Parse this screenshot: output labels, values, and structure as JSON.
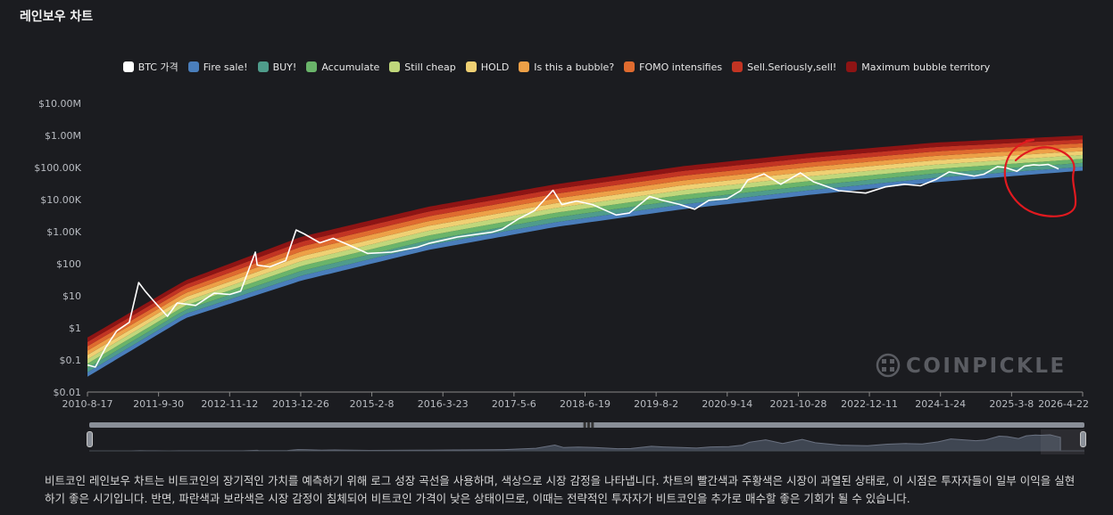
{
  "page": {
    "title": "레인보우 차트",
    "description": "비트코인 레인보우 차트는 비트코인의 장기적인 가치를 예측하기 위해 로그 성장 곡선을 사용하며, 색상으로 시장 감정을 나타냅니다. 차트의 빨간색과 주황색은 시장이 과열된 상태로, 이 시점은 투자자들이 일부 이익을 실현하기 좋은 시기입니다. 반면, 파란색과 보라색은 시장 감정이 침체되어 비트코인 가격이 낮은 상태이므로, 이때는 전략적인 투자자가 비트코인을 추가로 매수할 좋은 기회가 될 수 있습니다.",
    "watermark": "COINPICKLE"
  },
  "chart_data": {
    "type": "area",
    "y_scale": "log",
    "ylim": [
      0.01,
      10000000
    ],
    "xlim": [
      "2010-08-17",
      "2026-04-22"
    ],
    "y_ticks": [
      {
        "value": 10000000,
        "label": "$10.00M"
      },
      {
        "value": 1000000,
        "label": "$1.00M"
      },
      {
        "value": 100000,
        "label": "$100.00K"
      },
      {
        "value": 10000,
        "label": "$10.00K"
      },
      {
        "value": 1000,
        "label": "$1.00K"
      },
      {
        "value": 100,
        "label": "$100"
      },
      {
        "value": 10,
        "label": "$10"
      },
      {
        "value": 1,
        "label": "$1"
      },
      {
        "value": 0.1,
        "label": "$0.1"
      },
      {
        "value": 0.01,
        "label": "$0.01"
      }
    ],
    "x_ticks": [
      "2010-8-17",
      "2011-9-30",
      "2012-11-12",
      "2013-12-26",
      "2015-2-8",
      "2016-3-23",
      "2017-5-6",
      "2018-6-19",
      "2019-8-2",
      "2020-9-14",
      "2021-10-28",
      "2022-12-11",
      "2024-1-24",
      "2025-3-8",
      "2026-4-22"
    ],
    "legend_position": "top",
    "grid": false,
    "series": [
      {
        "name": "BTC 가격",
        "color": "#ffffff"
      },
      {
        "name": "Fire sale!",
        "color": "#4a7ebb"
      },
      {
        "name": "BUY!",
        "color": "#4f9c8b"
      },
      {
        "name": "Accumulate",
        "color": "#6ab46a"
      },
      {
        "name": "Still cheap",
        "color": "#c0d77b"
      },
      {
        "name": "HOLD",
        "color": "#efd073"
      },
      {
        "name": "Is this a bubble?",
        "color": "#eda047"
      },
      {
        "name": "FOMO intensifies",
        "color": "#df6b2f"
      },
      {
        "name": "Sell.Seriously,sell!",
        "color": "#c23423"
      },
      {
        "name": "Maximum bubble territory",
        "color": "#8e1414"
      }
    ],
    "bands_lower_bound": [
      [
        "2010-08-17",
        0.03
      ],
      [
        "2012-03-01",
        2
      ],
      [
        "2014-01-01",
        30
      ],
      [
        "2016-01-01",
        270
      ],
      [
        "2018-01-01",
        1400
      ],
      [
        "2020-01-01",
        5000
      ],
      [
        "2022-01-01",
        14000
      ],
      [
        "2024-01-01",
        35000
      ],
      [
        "2026-04-22",
        80000
      ]
    ],
    "bands_upper_bound": [
      [
        "2010-08-17",
        0.5
      ],
      [
        "2012-03-01",
        30
      ],
      [
        "2014-01-01",
        700
      ],
      [
        "2016-01-01",
        6000
      ],
      [
        "2018-01-01",
        30000
      ],
      [
        "2020-01-01",
        110000
      ],
      [
        "2022-01-01",
        280000
      ],
      [
        "2024-01-01",
        600000
      ],
      [
        "2026-04-22",
        1000000
      ]
    ],
    "btc_price": [
      [
        "2010-08-17",
        0.07
      ],
      [
        "2010-10-01",
        0.06
      ],
      [
        "2010-12-01",
        0.25
      ],
      [
        "2011-02-01",
        0.8
      ],
      [
        "2011-04-15",
        1.5
      ],
      [
        "2011-06-08",
        26
      ],
      [
        "2011-07-15",
        14
      ],
      [
        "2011-09-01",
        7
      ],
      [
        "2011-11-20",
        2.3
      ],
      [
        "2012-01-15",
        6
      ],
      [
        "2012-05-01",
        5
      ],
      [
        "2012-08-15",
        12
      ],
      [
        "2012-11-12",
        11
      ],
      [
        "2013-01-15",
        14
      ],
      [
        "2013-04-09",
        230
      ],
      [
        "2013-04-20",
        90
      ],
      [
        "2013-07-01",
        80
      ],
      [
        "2013-10-01",
        125
      ],
      [
        "2013-11-30",
        1130
      ],
      [
        "2014-01-15",
        850
      ],
      [
        "2014-04-15",
        450
      ],
      [
        "2014-07-01",
        620
      ],
      [
        "2014-10-01",
        380
      ],
      [
        "2015-01-15",
        210
      ],
      [
        "2015-06-01",
        230
      ],
      [
        "2015-11-01",
        330
      ],
      [
        "2016-01-01",
        430
      ],
      [
        "2016-06-15",
        680
      ],
      [
        "2016-12-31",
        960
      ],
      [
        "2017-03-01",
        1200
      ],
      [
        "2017-06-01",
        2500
      ],
      [
        "2017-09-01",
        4500
      ],
      [
        "2017-12-17",
        19500
      ],
      [
        "2018-02-06",
        7000
      ],
      [
        "2018-05-01",
        9000
      ],
      [
        "2018-08-01",
        7000
      ],
      [
        "2018-12-15",
        3300
      ],
      [
        "2019-03-01",
        3800
      ],
      [
        "2019-06-26",
        12500
      ],
      [
        "2019-09-01",
        9700
      ],
      [
        "2019-12-15",
        7100
      ],
      [
        "2020-03-12",
        5000
      ],
      [
        "2020-06-01",
        9500
      ],
      [
        "2020-09-14",
        10600
      ],
      [
        "2020-12-01",
        19000
      ],
      [
        "2021-01-10",
        40000
      ],
      [
        "2021-04-14",
        63000
      ],
      [
        "2021-07-20",
        30000
      ],
      [
        "2021-11-10",
        68000
      ],
      [
        "2022-01-24",
        36000
      ],
      [
        "2022-06-18",
        19000
      ],
      [
        "2022-11-21",
        16000
      ],
      [
        "2023-03-15",
        25000
      ],
      [
        "2023-07-01",
        30000
      ],
      [
        "2023-10-01",
        27000
      ],
      [
        "2024-01-01",
        43000
      ],
      [
        "2024-03-14",
        73000
      ],
      [
        "2024-08-05",
        54000
      ],
      [
        "2024-10-01",
        62000
      ],
      [
        "2024-12-17",
        106000
      ],
      [
        "2025-02-01",
        100000
      ],
      [
        "2025-04-08",
        76000
      ],
      [
        "2025-05-22",
        111000
      ],
      [
        "2025-07-14",
        122000
      ],
      [
        "2025-08-15",
        118000
      ],
      [
        "2025-10-06",
        124000
      ],
      [
        "2025-11-10",
        104000
      ],
      [
        "2025-12-05",
        90000
      ]
    ]
  }
}
